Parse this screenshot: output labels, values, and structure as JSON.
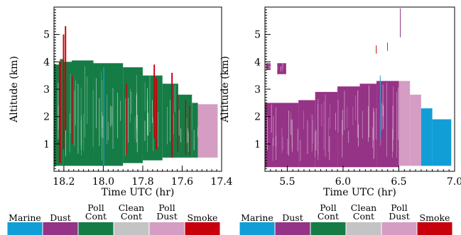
{
  "chart_data": [
    {
      "type": "heatmap",
      "title": "",
      "xlabel": "Time UTC (hr)",
      "ylabel": "Altitude (km)",
      "xlim": [
        18.25,
        17.4
      ],
      "ylim": [
        0,
        6
      ],
      "xticks": [
        "18.2",
        "18.0",
        "17.8",
        "17.6",
        "17.4"
      ],
      "xtick_values": [
        18.2,
        18.0,
        17.8,
        17.6,
        17.4
      ],
      "yticks": [
        "1",
        "2",
        "3",
        "4",
        "5"
      ],
      "ytick_values": [
        1,
        2,
        3,
        4,
        5
      ],
      "dominant_class": "Poll Cont",
      "segments": [
        {
          "x0": 18.25,
          "x1": 18.22,
          "class": "Poll Cont",
          "bottom": 0.2,
          "top": 3.9
        },
        {
          "x0": 18.22,
          "x1": 18.2,
          "class": "Poll Cont",
          "bottom": 0.2,
          "top": 4.1
        },
        {
          "x0": 18.2,
          "x1": 18.16,
          "class": "Poll Cont",
          "bottom": 0.2,
          "top": 4.0
        },
        {
          "x0": 18.16,
          "x1": 18.05,
          "class": "Poll Cont",
          "bottom": 0.2,
          "top": 4.05
        },
        {
          "x0": 18.05,
          "x1": 17.9,
          "class": "Poll Cont",
          "bottom": 0.2,
          "top": 3.95
        },
        {
          "x0": 17.9,
          "x1": 17.8,
          "class": "Poll Cont",
          "bottom": 0.3,
          "top": 3.8
        },
        {
          "x0": 17.8,
          "x1": 17.7,
          "class": "Poll Cont",
          "bottom": 0.4,
          "top": 3.5
        },
        {
          "x0": 17.7,
          "x1": 17.62,
          "class": "Poll Cont",
          "bottom": 0.5,
          "top": 3.2
        },
        {
          "x0": 17.62,
          "x1": 17.55,
          "class": "Poll Cont",
          "bottom": 0.5,
          "top": 2.8
        },
        {
          "x0": 17.55,
          "x1": 17.52,
          "class": "Poll Cont",
          "bottom": 0.5,
          "top": 2.5
        },
        {
          "x0": 17.52,
          "x1": 17.42,
          "class": "Poll Dust",
          "bottom": 0.5,
          "top": 2.45
        },
        {
          "x0": 18.225,
          "x1": 18.215,
          "class": "Smoke",
          "bottom": 0.3,
          "top": 4.0
        },
        {
          "x0": 18.205,
          "x1": 18.198,
          "class": "Smoke",
          "bottom": 0.8,
          "top": 5.0
        },
        {
          "x0": 18.195,
          "x1": 18.188,
          "class": "Smoke",
          "bottom": 1.5,
          "top": 5.3
        },
        {
          "x0": 18.16,
          "x1": 18.155,
          "class": "Smoke",
          "bottom": 1.0,
          "top": 3.5
        },
        {
          "x0": 18.0,
          "x1": 17.995,
          "class": "Marine",
          "bottom": 0.2,
          "top": 3.8
        },
        {
          "x0": 17.885,
          "x1": 17.88,
          "class": "Smoke",
          "bottom": 0.6,
          "top": 3.2
        },
        {
          "x0": 17.745,
          "x1": 17.738,
          "class": "Smoke",
          "bottom": 1.2,
          "top": 3.9
        },
        {
          "x0": 17.735,
          "x1": 17.728,
          "class": "Smoke",
          "bottom": 0.8,
          "top": 3.4
        },
        {
          "x0": 17.655,
          "x1": 17.648,
          "class": "Smoke",
          "bottom": 0.5,
          "top": 3.6
        },
        {
          "x0": 17.625,
          "x1": 17.62,
          "class": "Smoke",
          "bottom": 0.7,
          "top": 2.8
        },
        {
          "x0": 17.585,
          "x1": 17.58,
          "class": "Smoke",
          "bottom": 0.6,
          "top": 2.6
        },
        {
          "x0": 17.565,
          "x1": 17.56,
          "class": "Smoke",
          "bottom": 0.6,
          "top": 2.4
        }
      ]
    },
    {
      "type": "heatmap",
      "title": "",
      "xlabel": "Time UTC (hr)",
      "ylabel": "Altitude (km)",
      "xlim": [
        5.3,
        7.0
      ],
      "ylim": [
        0,
        6
      ],
      "xticks": [
        "5.5",
        "6.0",
        "6.5",
        "7.0"
      ],
      "xtick_values": [
        5.5,
        6.0,
        6.5,
        7.0
      ],
      "yticks": [
        "1",
        "2",
        "3",
        "4",
        "5"
      ],
      "ytick_values": [
        1,
        2,
        3,
        4,
        5
      ],
      "dominant_class": "Dust",
      "segments": [
        {
          "x0": 5.3,
          "x1": 5.6,
          "class": "Dust",
          "bottom": 0.15,
          "top": 2.5
        },
        {
          "x0": 5.6,
          "x1": 5.75,
          "class": "Dust",
          "bottom": 0.15,
          "top": 2.6
        },
        {
          "x0": 5.75,
          "x1": 5.95,
          "class": "Dust",
          "bottom": 0.15,
          "top": 2.9
        },
        {
          "x0": 5.95,
          "x1": 6.15,
          "class": "Dust",
          "bottom": 0.15,
          "top": 3.1
        },
        {
          "x0": 6.15,
          "x1": 6.3,
          "class": "Dust",
          "bottom": 0.15,
          "top": 3.2
        },
        {
          "x0": 6.3,
          "x1": 6.5,
          "class": "Dust",
          "bottom": 0.15,
          "top": 3.3
        },
        {
          "x0": 6.5,
          "x1": 6.6,
          "class": "Poll Dust",
          "bottom": 0.2,
          "top": 3.3
        },
        {
          "x0": 6.6,
          "x1": 6.7,
          "class": "Poll Dust",
          "bottom": 0.2,
          "top": 2.8
        },
        {
          "x0": 6.7,
          "x1": 6.8,
          "class": "Marine",
          "bottom": 0.2,
          "top": 2.3
        },
        {
          "x0": 6.8,
          "x1": 6.97,
          "class": "Marine",
          "bottom": 0.2,
          "top": 1.9
        },
        {
          "x0": 5.31,
          "x1": 5.35,
          "class": "Dust",
          "bottom": 3.7,
          "top": 3.95
        },
        {
          "x0": 5.41,
          "x1": 5.49,
          "class": "Dust",
          "bottom": 3.55,
          "top": 3.95
        },
        {
          "x0": 6.295,
          "x1": 6.3,
          "class": "Smoke",
          "bottom": 4.3,
          "top": 4.6
        },
        {
          "x0": 6.395,
          "x1": 6.4,
          "class": "Dust",
          "bottom": 4.4,
          "top": 4.7
        },
        {
          "x0": 6.51,
          "x1": 6.515,
          "class": "Dust",
          "bottom": 4.9,
          "top": 5.95
        },
        {
          "x0": 6.33,
          "x1": 6.335,
          "class": "Marine",
          "bottom": 1.2,
          "top": 3.5
        }
      ]
    }
  ],
  "legend": {
    "entries": [
      {
        "line1": "",
        "line2": "Marine",
        "class": "Marine",
        "color": "#119ed6"
      },
      {
        "line1": "",
        "line2": "Dust",
        "class": "Dust",
        "color": "#953386"
      },
      {
        "line1": "Poll",
        "line2": "Cont",
        "class": "Poll Cont",
        "color": "#157c45"
      },
      {
        "line1": "Clean",
        "line2": "Cont",
        "class": "Clean Cont",
        "color": "#c4c4c4"
      },
      {
        "line1": "Poll",
        "line2": "Dust",
        "class": "Poll Dust",
        "color": "#d59dc3"
      },
      {
        "line1": "",
        "line2": "Smoke",
        "class": "Smoke",
        "color": "#c8000c"
      }
    ]
  }
}
